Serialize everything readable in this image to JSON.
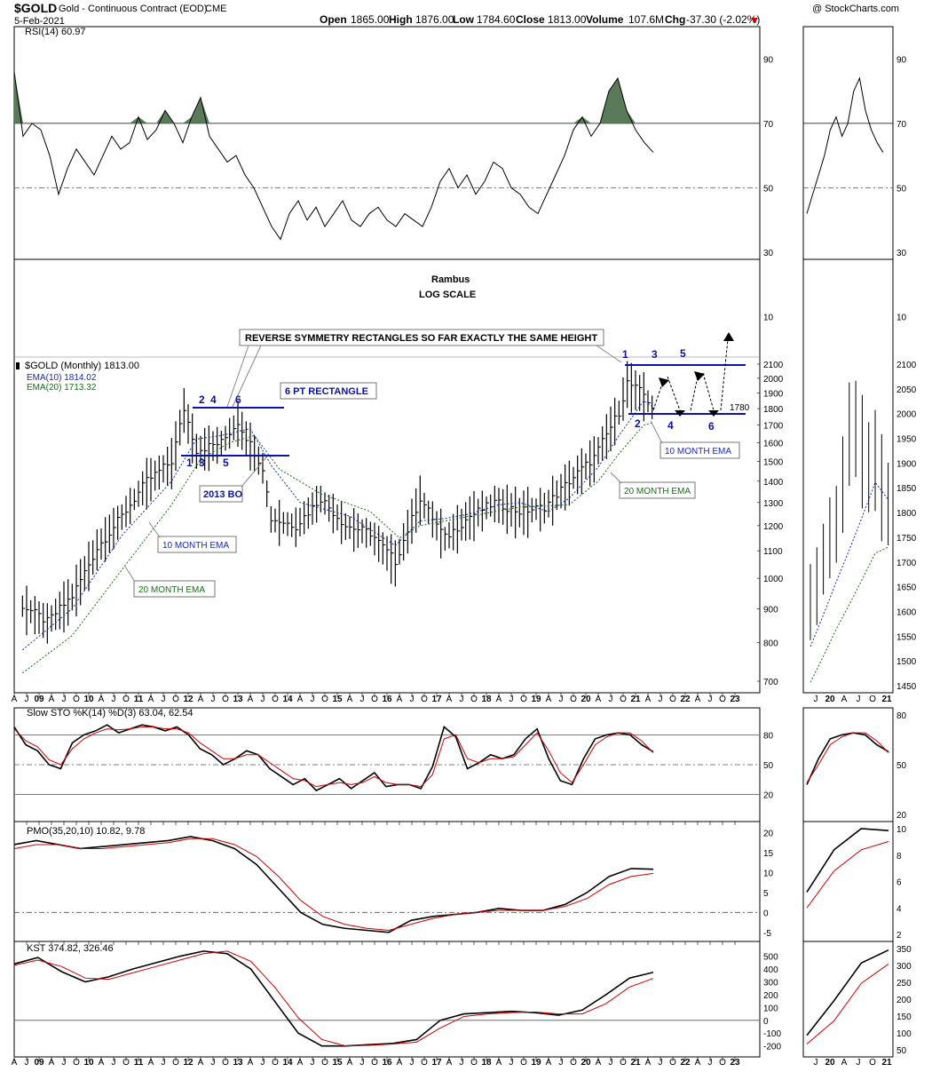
{
  "header": {
    "symbol": "$GOLD",
    "name": "Gold - Continuous Contract (EOD)",
    "exchange": "CME",
    "date": "5-Feb-2021",
    "watermark": "@ StockCharts.com",
    "open_label": "Open",
    "open": "1865.00",
    "high_label": "High",
    "high": "1876.00",
    "low_label": "Low",
    "low": "1784.60",
    "close_label": "Close",
    "close": "1813.00",
    "volume_label": "Volume",
    "volume": "107.6M",
    "chg_label": "Chg",
    "chg": "-37.30 (-2.02%)",
    "down_color": "#cc0000"
  },
  "annotations": {
    "author": "Rambus",
    "scale_note": "LOG SCALE",
    "headline": "REVERSE SYMMETRY RECTANGLES SO FAR EXACTLY THE SAME HEIGHT",
    "rectangle_box": "6 PT  RECTANGLE",
    "bo_box": "2013 BO",
    "ema10_box_left": "10 MONTH EMA",
    "ema20_box_left": "20 MONTH EMA",
    "ema10_box_right": "10 MONTH EMA",
    "ema20_box_right": "20 MONTH EMA",
    "level_label": "1780",
    "left_top_points": [
      "2",
      "4",
      "6"
    ],
    "left_bottom_points": [
      "1",
      "3",
      "5"
    ],
    "right_top_points": [
      "1",
      "3",
      "5"
    ],
    "right_bottom_points": [
      "2",
      "4",
      "6"
    ],
    "line_color": "#0a12a8"
  },
  "chart_data": [
    {
      "type": "line",
      "panel": "RSI",
      "title": "RSI(14) 60.97",
      "y_ticks": [
        90,
        70,
        50,
        30,
        10
      ],
      "overbought": 70,
      "oversold": 30,
      "midline": 50,
      "series": [
        {
          "name": "RSI(14)",
          "values": [
            86,
            66,
            70,
            68,
            60,
            48,
            56,
            62,
            58,
            54,
            60,
            66,
            62,
            64,
            72,
            65,
            68,
            74,
            70,
            64,
            72,
            78,
            66,
            62,
            58,
            60,
            54,
            50,
            44,
            38,
            34,
            42,
            46,
            40,
            44,
            38,
            42,
            46,
            40,
            38,
            42,
            44,
            40,
            38,
            42,
            40,
            38,
            44,
            52,
            56,
            50,
            54,
            48,
            52,
            58,
            56,
            50,
            48,
            44,
            42,
            48,
            54,
            60,
            68,
            72,
            66,
            70,
            80,
            84,
            74,
            68,
            64,
            61
          ]
        }
      ]
    },
    {
      "type": "line",
      "panel": "Price",
      "title": "$GOLD (Monthly) 1813.00",
      "scale": "log",
      "y_ticks": [
        700,
        800,
        900,
        1000,
        1100,
        1200,
        1300,
        1400,
        1500,
        1600,
        1700,
        1800,
        1900,
        2000,
        2100
      ],
      "x_ticks": [
        "A",
        "J",
        "09",
        "A",
        "J",
        "O",
        "10",
        "A",
        "J",
        "O",
        "11",
        "A",
        "J",
        "O",
        "12",
        "A",
        "J",
        "O",
        "13",
        "A",
        "J",
        "O",
        "14",
        "A",
        "J",
        "O",
        "15",
        "A",
        "J",
        "O",
        "16",
        "A",
        "J",
        "O",
        "17",
        "A",
        "J",
        "O",
        "18",
        "A",
        "J",
        "O",
        "19",
        "A",
        "J",
        "O",
        "20",
        "A",
        "J",
        "O",
        "21",
        "A",
        "J",
        "O",
        "22",
        "A",
        "J",
        "O",
        "23"
      ],
      "x_start": "Apr 2008",
      "x_end": "Mar 2023",
      "series": [
        {
          "name": "$GOLD",
          "x": [
            "2008-06",
            "2008-12",
            "2009-06",
            "2009-12",
            "2010-06",
            "2010-12",
            "2011-06",
            "2011-09",
            "2011-12",
            "2012-06",
            "2012-10",
            "2013-04",
            "2013-06",
            "2013-12",
            "2014-06",
            "2014-12",
            "2015-06",
            "2015-12",
            "2016-06",
            "2016-12",
            "2017-06",
            "2017-12",
            "2018-06",
            "2018-12",
            "2019-06",
            "2019-12",
            "2020-06",
            "2020-08",
            "2020-12",
            "2021-02"
          ],
          "values": [
            910,
            860,
            940,
            1110,
            1240,
            1400,
            1500,
            1800,
            1560,
            1600,
            1720,
            1470,
            1230,
            1200,
            1320,
            1200,
            1170,
            1060,
            1320,
            1150,
            1240,
            1300,
            1260,
            1280,
            1400,
            1520,
            1780,
            1970,
            1890,
            1813
          ]
        },
        {
          "name": "EMA(10) 1814.02",
          "color": "#1a2aa8",
          "x": [
            "2008-06",
            "2009-06",
            "2010-06",
            "2011-06",
            "2011-12",
            "2012-06",
            "2013-01",
            "2013-06",
            "2014-01",
            "2015-01",
            "2015-12",
            "2016-06",
            "2016-12",
            "2017-06",
            "2018-01",
            "2018-06",
            "2019-01",
            "2019-06",
            "2020-01",
            "2020-06",
            "2020-12",
            "2021-02"
          ],
          "values": [
            780,
            900,
            1160,
            1400,
            1620,
            1640,
            1680,
            1480,
            1300,
            1240,
            1120,
            1220,
            1230,
            1250,
            1290,
            1300,
            1260,
            1320,
            1470,
            1640,
            1850,
            1814
          ]
        },
        {
          "name": "EMA(20) 1713.32",
          "color": "#1a6a1a",
          "x": [
            "2008-06",
            "2009-06",
            "2010-06",
            "2011-06",
            "2012-01",
            "2012-08",
            "2013-02",
            "2013-08",
            "2014-06",
            "2015-06",
            "2016-01",
            "2016-06",
            "2017-06",
            "2018-06",
            "2019-06",
            "2020-01",
            "2020-06",
            "2020-12",
            "2021-02"
          ],
          "values": [
            720,
            820,
            1030,
            1290,
            1510,
            1600,
            1640,
            1460,
            1340,
            1260,
            1150,
            1200,
            1240,
            1280,
            1290,
            1400,
            1540,
            1700,
            1713
          ]
        }
      ],
      "ema_lengths": [
        10,
        20
      ]
    },
    {
      "type": "line",
      "panel": "Slow STO",
      "title": "Slow STO %K(14) %D(3) 63.04, 62.54",
      "y_ticks": [
        80,
        50,
        20
      ],
      "series": [
        {
          "name": "%K(14)",
          "values": [
            88,
            70,
            64,
            50,
            46,
            72,
            80,
            84,
            90,
            82,
            86,
            90,
            88,
            84,
            88,
            80,
            66,
            60,
            50,
            56,
            64,
            60,
            46,
            38,
            30,
            36,
            24,
            30,
            36,
            26,
            34,
            42,
            28,
            30,
            30,
            26,
            48,
            88,
            78,
            46,
            52,
            60,
            56,
            60,
            76,
            86,
            56,
            34,
            30,
            56,
            76,
            80,
            82,
            80,
            70,
            63
          ]
        },
        {
          "name": "%D(3)",
          "color": "#cc0000",
          "values": [
            86,
            74,
            68,
            55,
            50,
            66,
            76,
            82,
            86,
            85,
            86,
            88,
            88,
            86,
            86,
            82,
            72,
            64,
            56,
            56,
            60,
            60,
            52,
            44,
            36,
            34,
            28,
            30,
            32,
            30,
            32,
            38,
            32,
            30,
            30,
            28,
            40,
            76,
            80,
            56,
            52,
            56,
            56,
            58,
            70,
            82,
            64,
            42,
            32,
            50,
            70,
            78,
            82,
            82,
            74,
            62
          ]
        }
      ]
    },
    {
      "type": "line",
      "panel": "PMO",
      "title": "PMO(35,20,10) 10.82, 9.78",
      "y_ticks": [
        20,
        15,
        10,
        5,
        0,
        -5
      ],
      "series": [
        {
          "name": "PMO(35,20,10)",
          "values": [
            17,
            18,
            17,
            16,
            16.5,
            17,
            17.5,
            18,
            19,
            18,
            16,
            12,
            6,
            0,
            -3,
            -4,
            -4.5,
            -5,
            -2,
            -1,
            -0.5,
            0,
            1,
            0.5,
            0.5,
            2,
            5,
            9,
            11,
            10.82
          ]
        },
        {
          "name": "Signal",
          "color": "#cc0000",
          "values": [
            16,
            17,
            17,
            16,
            16,
            16.5,
            17,
            17.5,
            18.5,
            18.5,
            17,
            14,
            9,
            3,
            -1,
            -3,
            -4,
            -4.5,
            -3,
            -1.5,
            -0.5,
            0,
            0.5,
            0.5,
            0.5,
            1.5,
            3.5,
            7,
            9,
            9.78
          ]
        }
      ]
    },
    {
      "type": "line",
      "panel": "KST",
      "title": "KST 374.82, 326.46",
      "y_ticks": [
        500,
        400,
        300,
        200,
        100,
        0,
        -100,
        -200
      ],
      "series": [
        {
          "name": "KST",
          "values": [
            440,
            490,
            380,
            300,
            340,
            400,
            450,
            500,
            540,
            520,
            400,
            150,
            -100,
            -200,
            -200,
            -190,
            -180,
            -150,
            0,
            50,
            60,
            70,
            60,
            40,
            80,
            200,
            330,
            374.82
          ]
        },
        {
          "name": "Signal",
          "color": "#cc0000",
          "values": [
            430,
            470,
            420,
            330,
            320,
            370,
            420,
            470,
            520,
            540,
            460,
            260,
            20,
            -150,
            -200,
            -195,
            -185,
            -170,
            -60,
            30,
            50,
            60,
            65,
            50,
            50,
            130,
            260,
            326.46
          ]
        }
      ]
    }
  ],
  "mini_panels": {
    "x_ticks": [
      "J",
      "20",
      "A",
      "J",
      "O",
      "21"
    ],
    "price_ticks": [
      "2100",
      "2050",
      "2000",
      "1950",
      "1900",
      "1850",
      "1800",
      "1750",
      "1700",
      "1650",
      "1600",
      "1550",
      "1500",
      "1450"
    ],
    "rsi_ticks": [
      "90",
      "70",
      "50"
    ],
    "sto_ticks": [
      "80",
      "50",
      "20"
    ],
    "pmo_ticks": [
      "10",
      "8",
      "6",
      "4",
      "2"
    ],
    "kst_ticks": [
      "350",
      "300",
      "250",
      "200",
      "150",
      "100",
      "50"
    ]
  },
  "colors": {
    "price_bar": "#000000",
    "ema10": "#1a2aa8",
    "ema20": "#1a6a1a",
    "signal": "#cc0000",
    "rsi_fill": "#5a7a5a",
    "grid": "#555555"
  }
}
